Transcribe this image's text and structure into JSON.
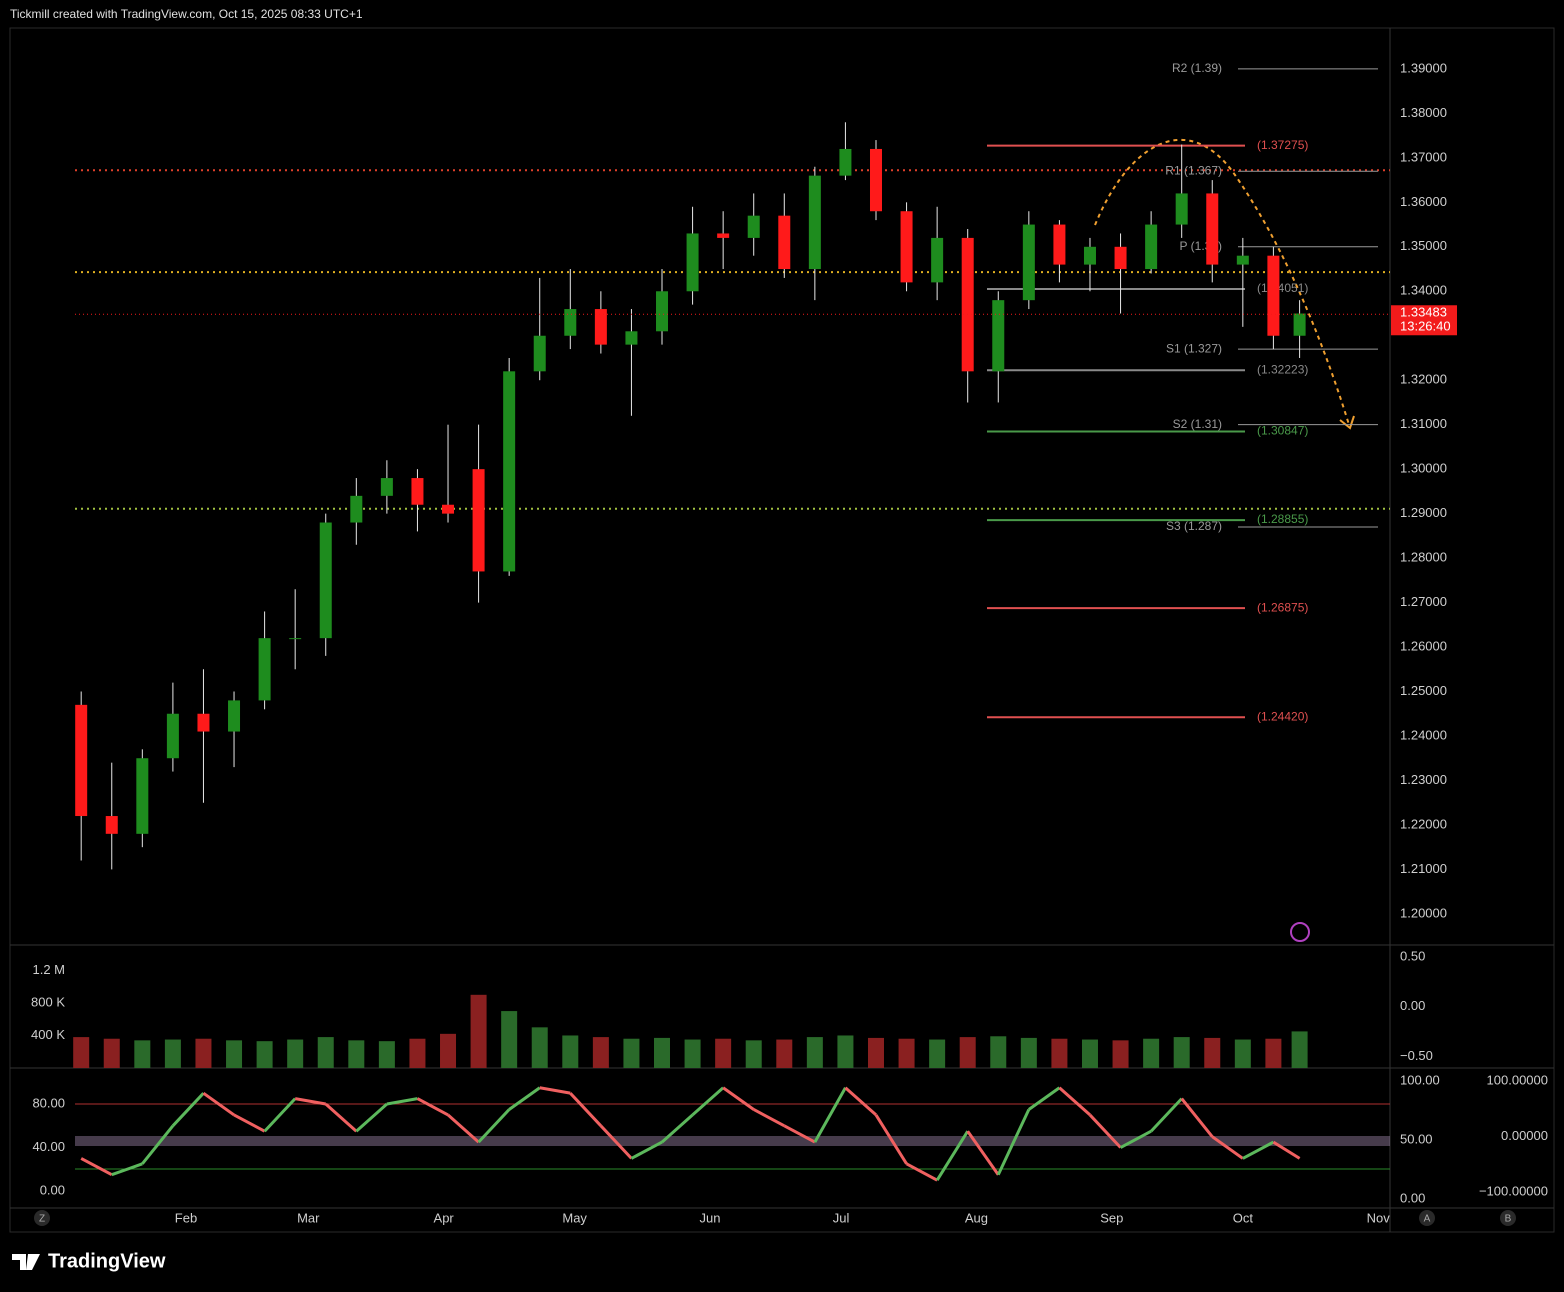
{
  "header": "Tickmill created with TradingView.com, Oct 15, 2025 08:33 UTC+1",
  "brand": "TradingView",
  "toolbar": [
    "Z",
    "A",
    "B"
  ],
  "chart_data": [
    {
      "type": "candlestick",
      "up_color": "#1e8c1e",
      "down_color": "#ff1a1a",
      "x": [
        8,
        15,
        22,
        29,
        36,
        43,
        50,
        57,
        64,
        71,
        78,
        85,
        92,
        99,
        106,
        113,
        120,
        127,
        134,
        141,
        148,
        155,
        162,
        169,
        176,
        183,
        190,
        197,
        204,
        211,
        218,
        225,
        232,
        239,
        246,
        253,
        260,
        267,
        274,
        281,
        287
      ],
      "open": [
        1.247,
        1.222,
        1.218,
        1.235,
        1.245,
        1.241,
        1.248,
        1.262,
        1.262,
        1.288,
        1.294,
        1.298,
        1.292,
        1.3,
        1.277,
        1.322,
        1.33,
        1.336,
        1.328,
        1.331,
        1.34,
        1.353,
        1.352,
        1.357,
        1.345,
        1.366,
        1.372,
        1.358,
        1.342,
        1.352,
        1.322,
        1.338,
        1.355,
        1.346,
        1.35,
        1.345,
        1.355,
        1.362,
        1.346,
        1.348,
        1.33
      ],
      "high": [
        1.25,
        1.234,
        1.237,
        1.252,
        1.255,
        1.25,
        1.268,
        1.273,
        1.29,
        1.298,
        1.302,
        1.3,
        1.31,
        1.31,
        1.325,
        1.343,
        1.345,
        1.34,
        1.336,
        1.345,
        1.359,
        1.358,
        1.362,
        1.362,
        1.368,
        1.378,
        1.374,
        1.36,
        1.359,
        1.354,
        1.34,
        1.358,
        1.356,
        1.352,
        1.353,
        1.358,
        1.373,
        1.365,
        1.352,
        1.35,
        1.338
      ],
      "low": [
        1.212,
        1.21,
        1.215,
        1.232,
        1.225,
        1.233,
        1.246,
        1.255,
        1.258,
        1.283,
        1.29,
        1.286,
        1.288,
        1.27,
        1.276,
        1.32,
        1.327,
        1.326,
        1.312,
        1.328,
        1.337,
        1.345,
        1.348,
        1.343,
        1.338,
        1.365,
        1.356,
        1.34,
        1.338,
        1.315,
        1.315,
        1.336,
        1.342,
        1.34,
        1.335,
        1.344,
        1.352,
        1.342,
        1.332,
        1.327,
        1.325
      ],
      "close": [
        1.222,
        1.218,
        1.235,
        1.245,
        1.241,
        1.248,
        1.262,
        1.262,
        1.288,
        1.294,
        1.298,
        1.292,
        1.29,
        1.277,
        1.322,
        1.33,
        1.336,
        1.328,
        1.331,
        1.34,
        1.353,
        1.352,
        1.357,
        1.345,
        1.366,
        1.372,
        1.358,
        1.342,
        1.352,
        1.322,
        1.338,
        1.355,
        1.346,
        1.35,
        1.345,
        1.355,
        1.362,
        1.346,
        1.348,
        1.33,
        1.335
      ],
      "xlim": [
        -8.3,
        307.7
      ],
      "xticks": [
        {
          "value": 32,
          "label": "Feb"
        },
        {
          "value": 60,
          "label": "Mar"
        },
        {
          "value": 91,
          "label": "Apr"
        },
        {
          "value": 121,
          "label": "May"
        },
        {
          "value": 152,
          "label": "Jun"
        },
        {
          "value": 182,
          "label": "Jul"
        },
        {
          "value": 213,
          "label": "Aug"
        },
        {
          "value": 244,
          "label": "Sep"
        },
        {
          "value": 274,
          "label": "Oct"
        },
        {
          "value": 305,
          "label": "Nov"
        }
      ],
      "ylim": [
        1.193,
        1.3992
      ],
      "yticks": [
        {
          "value": 1.2,
          "label": "1.20000"
        },
        {
          "value": 1.21,
          "label": "1.21000"
        },
        {
          "value": 1.22,
          "label": "1.22000"
        },
        {
          "value": 1.23,
          "label": "1.23000"
        },
        {
          "value": 1.24,
          "label": "1.24000"
        },
        {
          "value": 1.25,
          "label": "1.25000"
        },
        {
          "value": 1.26,
          "label": "1.26000"
        },
        {
          "value": 1.27,
          "label": "1.27000"
        },
        {
          "value": 1.28,
          "label": "1.28000"
        },
        {
          "value": 1.29,
          "label": "1.29000"
        },
        {
          "value": 1.3,
          "label": "1.30000"
        },
        {
          "value": 1.31,
          "label": "1.31000"
        },
        {
          "value": 1.32,
          "label": "1.32000"
        },
        {
          "value": 1.34,
          "label": "1.34000"
        },
        {
          "value": 1.35,
          "label": "1.35000"
        },
        {
          "value": 1.36,
          "label": "1.36000"
        },
        {
          "value": 1.37,
          "label": "1.37000"
        },
        {
          "value": 1.38,
          "label": "1.38000"
        },
        {
          "value": 1.39,
          "label": "1.39000"
        }
      ],
      "pivots": [
        {
          "value": 1.39,
          "label": "R2 (1.39)"
        },
        {
          "value": 1.367,
          "label": "R1 (1.367)"
        },
        {
          "value": 1.35,
          "label": "P (1.35)"
        },
        {
          "value": 1.327,
          "label": "S1 (1.327)"
        },
        {
          "value": 1.31,
          "label": "S2 (1.31)"
        },
        {
          "value": 1.287,
          "label": "S3 (1.287)"
        }
      ],
      "pivot_color": "#9a9a9a",
      "levels": [
        {
          "value": 1.37275,
          "label": "(1.37275)",
          "color": "#e05050"
        },
        {
          "value": 1.34051,
          "label": "(1.34051)",
          "color": "#8a8a8a"
        },
        {
          "value": 1.32223,
          "label": "(1.32223)",
          "color": "#8a8a8a"
        },
        {
          "value": 1.30847,
          "label": "(1.30847)",
          "color": "#4a9a4a"
        },
        {
          "value": 1.28855,
          "label": "(1.28855)",
          "color": "#4a9a4a"
        },
        {
          "value": 1.26875,
          "label": "(1.26875)",
          "color": "#e05050"
        },
        {
          "value": 1.2442,
          "label": "(1.24420)",
          "color": "#e05050"
        }
      ],
      "hlines": [
        {
          "value": 1.3672,
          "color": "#e0402a"
        },
        {
          "value": 1.3443,
          "color": "#e0b020"
        },
        {
          "value": 1.2911,
          "color": "#a0c040"
        }
      ],
      "last_price": {
        "value": 1.33483,
        "label": "1.33483"
      },
      "countdown": "13:26:40",
      "last_color": "#f21b1b"
    },
    {
      "type": "bar",
      "up_color": "#2a6a2a",
      "down_color": "#8a2020",
      "values": [
        380000,
        360000,
        340000,
        350000,
        360000,
        340000,
        330000,
        350000,
        380000,
        340000,
        330000,
        360000,
        420000,
        900000,
        700000,
        500000,
        400000,
        380000,
        360000,
        370000,
        350000,
        360000,
        340000,
        350000,
        380000,
        400000,
        370000,
        360000,
        350000,
        380000,
        390000,
        370000,
        360000,
        350000,
        340000,
        360000,
        380000,
        370000,
        350000,
        360000,
        450000
      ],
      "ylim": [
        0,
        1512500
      ],
      "yticks": [
        {
          "value": 400000,
          "label": "400 K"
        },
        {
          "value": 800000,
          "label": "800 K"
        },
        {
          "value": 1200000,
          "label": "1.2 M"
        }
      ],
      "y2lim": [
        -0.616,
        0.62
      ],
      "y2ticks": [
        {
          "value": 0.5,
          "label": "0.50"
        },
        {
          "value": 0,
          "label": "0.00"
        },
        {
          "value": -0.5,
          "label": "−0.50"
        }
      ]
    },
    {
      "type": "line",
      "up_color": "#5cb85c",
      "down_color": "#f06060",
      "values": [
        30,
        15,
        25,
        60,
        90,
        70,
        55,
        85,
        80,
        55,
        80,
        85,
        70,
        45,
        75,
        95,
        90,
        60,
        30,
        45,
        70,
        95,
        75,
        60,
        45,
        95,
        70,
        25,
        10,
        55,
        15,
        75,
        95,
        70,
        40,
        55,
        85,
        50,
        30,
        45,
        30
      ],
      "ylim": [
        -15.6,
        111.3
      ],
      "yticks": [
        {
          "value": 0,
          "label": "0.00"
        },
        {
          "value": 40,
          "label": "40.00"
        },
        {
          "value": 80,
          "label": "80.00"
        }
      ],
      "y2lim": [
        -7.6,
        109.3
      ],
      "y2ticks": [
        {
          "value": 0,
          "label": "0.00"
        },
        {
          "value": 50,
          "label": "50.00"
        },
        {
          "value": 100,
          "label": "100.00"
        }
      ],
      "y3lim": [
        -129,
        120
      ],
      "y3ticks": [
        {
          "value": -100,
          "label": "−100.00000"
        },
        {
          "value": 0,
          "label": "0.00000"
        },
        {
          "value": 100,
          "label": "100.00000"
        }
      ]
    }
  ]
}
